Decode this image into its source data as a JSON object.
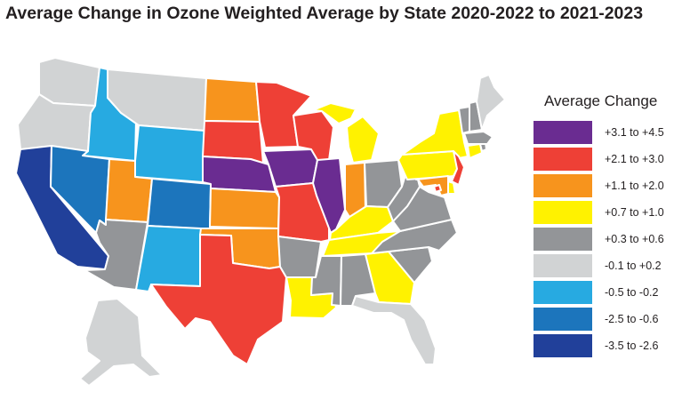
{
  "title": "Average Change in Ozone Weighted Average by State 2020-2022 to 2021-2023",
  "legend": {
    "title": "Average Change",
    "items": [
      {
        "label": "+3.1 to +4.5",
        "color": "#6a2c91"
      },
      {
        "label": "+2.1 to +3.0",
        "color": "#ee4036"
      },
      {
        "label": "+1.1 to +2.0",
        "color": "#f7941d"
      },
      {
        "label": "+0.7 to +1.0",
        "color": "#fff200"
      },
      {
        "label": "+0.3 to +0.6",
        "color": "#939598"
      },
      {
        "label": "-0.1 to +0.2",
        "color": "#d1d3d4"
      },
      {
        "label": "-0.5 to -0.2",
        "color": "#27aae1"
      },
      {
        "label": "-2.5 to -0.6",
        "color": "#1c75bc"
      },
      {
        "label": "-3.5 to -2.6",
        "color": "#21409a"
      }
    ]
  },
  "states": [
    {
      "id": "WA",
      "category": "-0.1 to +0.2"
    },
    {
      "id": "OR",
      "category": "-0.1 to +0.2"
    },
    {
      "id": "CA",
      "category": "-3.5 to -2.6"
    },
    {
      "id": "ID",
      "category": "-0.5 to -0.2"
    },
    {
      "id": "NV",
      "category": "-2.5 to -0.6"
    },
    {
      "id": "MT",
      "category": "-0.1 to +0.2"
    },
    {
      "id": "WY",
      "category": "-0.5 to -0.2"
    },
    {
      "id": "UT",
      "category": "+1.1 to +2.0"
    },
    {
      "id": "CO",
      "category": "-2.5 to -0.6"
    },
    {
      "id": "AZ",
      "category": "+0.3 to +0.6"
    },
    {
      "id": "NM",
      "category": "-0.5 to -0.2"
    },
    {
      "id": "ND",
      "category": "+1.1 to +2.0"
    },
    {
      "id": "SD",
      "category": "+2.1 to +3.0"
    },
    {
      "id": "NE",
      "category": "+3.1 to +4.5"
    },
    {
      "id": "KS",
      "category": "+1.1 to +2.0"
    },
    {
      "id": "OK",
      "category": "+1.1 to +2.0"
    },
    {
      "id": "TX",
      "category": "+2.1 to +3.0"
    },
    {
      "id": "MN",
      "category": "+2.1 to +3.0"
    },
    {
      "id": "IA",
      "category": "+3.1 to +4.5"
    },
    {
      "id": "MO",
      "category": "+2.1 to +3.0"
    },
    {
      "id": "AR",
      "category": "+0.3 to +0.6"
    },
    {
      "id": "LA",
      "category": "+0.7 to +1.0"
    },
    {
      "id": "WI",
      "category": "+2.1 to +3.0"
    },
    {
      "id": "IL",
      "category": "+3.1 to +4.5"
    },
    {
      "id": "MI",
      "category": "+0.7 to +1.0"
    },
    {
      "id": "IN",
      "category": "+1.1 to +2.0"
    },
    {
      "id": "OH",
      "category": "+0.3 to +0.6"
    },
    {
      "id": "KY",
      "category": "+0.7 to +1.0"
    },
    {
      "id": "TN",
      "category": "+0.7 to +1.0"
    },
    {
      "id": "MS",
      "category": "+0.3 to +0.6"
    },
    {
      "id": "AL",
      "category": "+0.3 to +0.6"
    },
    {
      "id": "GA",
      "category": "+0.7 to +1.0"
    },
    {
      "id": "FL",
      "category": "-0.1 to +0.2"
    },
    {
      "id": "SC",
      "category": "+0.3 to +0.6"
    },
    {
      "id": "NC",
      "category": "+0.3 to +0.6"
    },
    {
      "id": "VA",
      "category": "+0.3 to +0.6"
    },
    {
      "id": "WV",
      "category": "+0.3 to +0.6"
    },
    {
      "id": "PA",
      "category": "+0.7 to +1.0"
    },
    {
      "id": "NY",
      "category": "+0.7 to +1.0"
    },
    {
      "id": "NJ",
      "category": "+2.1 to +3.0"
    },
    {
      "id": "DE",
      "category": "+0.7 to +1.0"
    },
    {
      "id": "MD",
      "category": "+1.1 to +2.0"
    },
    {
      "id": "DC",
      "category": "+2.1 to +3.0"
    },
    {
      "id": "CT",
      "category": "+0.7 to +1.0"
    },
    {
      "id": "RI",
      "category": "+0.3 to +0.6"
    },
    {
      "id": "MA",
      "category": "+0.3 to +0.6"
    },
    {
      "id": "VT",
      "category": "+0.3 to +0.6"
    },
    {
      "id": "NH",
      "category": "+0.3 to +0.6"
    },
    {
      "id": "ME",
      "category": "-0.1 to +0.2"
    },
    {
      "id": "AK",
      "category": "-0.1 to +0.2"
    }
  ]
}
